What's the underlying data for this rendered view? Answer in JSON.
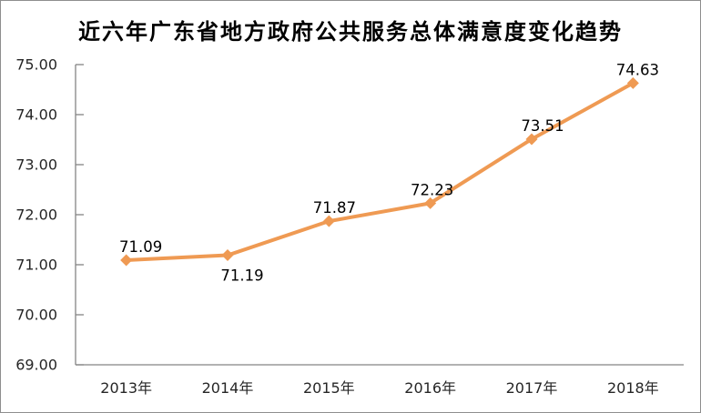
{
  "window": {
    "background": "#ffffff",
    "border_color": "#8e8e8e"
  },
  "chart_data": {
    "type": "line",
    "title": "近六年广东省地方政府公共服务总体满意度变化趋势",
    "categories": [
      "2013年",
      "2014年",
      "2015年",
      "2016年",
      "2017年",
      "2018年"
    ],
    "values": [
      71.09,
      71.19,
      71.87,
      72.23,
      73.51,
      74.63
    ],
    "data_labels": [
      "71.09",
      "71.19",
      "71.87",
      "72.23",
      "73.51",
      "74.63"
    ],
    "data_label_positions": [
      "above",
      "below",
      "above",
      "above",
      "above",
      "above"
    ],
    "xlabel": "",
    "ylabel": "",
    "ylim": [
      69,
      75
    ],
    "ytick_labels": [
      "69.00",
      "70.00",
      "71.00",
      "72.00",
      "73.00",
      "74.00",
      "75.00"
    ],
    "grid": false,
    "legend": "none",
    "marker": "diamond",
    "line_color": "#EF9A53",
    "axis_color": "#848484",
    "tick_label_color": "#262626",
    "data_label_color": "#000000"
  }
}
